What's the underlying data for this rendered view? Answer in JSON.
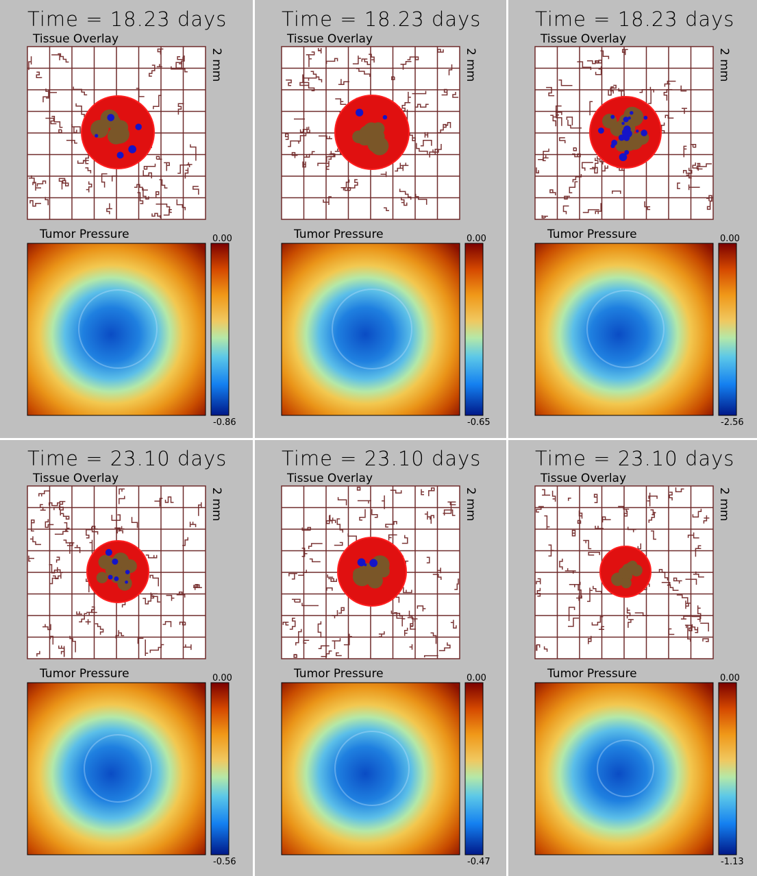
{
  "panels": [
    {
      "title": "Time = 18.23 days",
      "overlay_label": "Tissue Overlay",
      "scale_label": "2 mm",
      "pressure_label": "Tumor Pressure",
      "colorbar_max": "0.00",
      "colorbar_min": "-0.86"
    },
    {
      "title": "Time = 18.23 days",
      "overlay_label": "Tissue Overlay",
      "scale_label": "2 mm",
      "pressure_label": "Tumor Pressure",
      "colorbar_max": "0.00",
      "colorbar_min": "-0.65"
    },
    {
      "title": "Time = 18.23 days",
      "overlay_label": "Tissue Overlay",
      "scale_label": "2 mm",
      "pressure_label": "Tumor Pressure",
      "colorbar_max": "0.00",
      "colorbar_min": "-2.56"
    },
    {
      "title": "Time = 23.10 days",
      "overlay_label": "Tissue Overlay",
      "scale_label": "2 mm",
      "pressure_label": "Tumor Pressure",
      "colorbar_max": "0.00",
      "colorbar_min": "-0.56"
    },
    {
      "title": "Time = 23.10 days",
      "overlay_label": "Tissue Overlay",
      "scale_label": "2 mm",
      "pressure_label": "Tumor Pressure",
      "colorbar_max": "0.00",
      "colorbar_min": "-0.47"
    },
    {
      "title": "Time = 23.10 days",
      "overlay_label": "Tissue Overlay",
      "scale_label": "2 mm",
      "pressure_label": "Tumor Pressure",
      "colorbar_max": "0.00",
      "colorbar_min": "-1.13"
    }
  ]
}
